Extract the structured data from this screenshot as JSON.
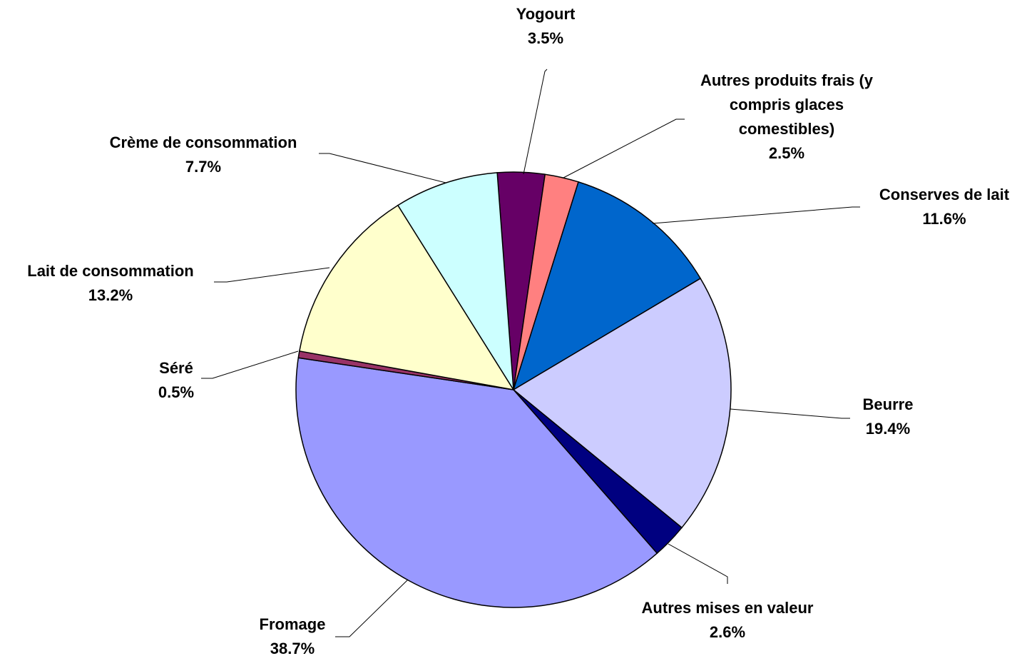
{
  "chart_data": {
    "type": "pie",
    "categories": [
      "Yogourt",
      "Autres produits frais (y compris glaces comestibles)",
      "Conserves de lait",
      "Beurre",
      "Autres mises en valeur",
      "Fromage",
      "Séré",
      "Lait de consommation",
      "Crème de consommation"
    ],
    "values": [
      3.5,
      2.5,
      11.6,
      19.4,
      2.6,
      38.7,
      0.5,
      13.2,
      7.7
    ],
    "value_labels": [
      "3.5%",
      "2.5%",
      "11.6%",
      "19.4%",
      "2.6%",
      "38.7%",
      "0.5%",
      "13.2%",
      "7.7%"
    ],
    "colors": [
      "#660066",
      "#ff8080",
      "#0066cc",
      "#ccccff",
      "#000080",
      "#9999ff",
      "#993366",
      "#ffffcc",
      "#ccffff"
    ]
  }
}
